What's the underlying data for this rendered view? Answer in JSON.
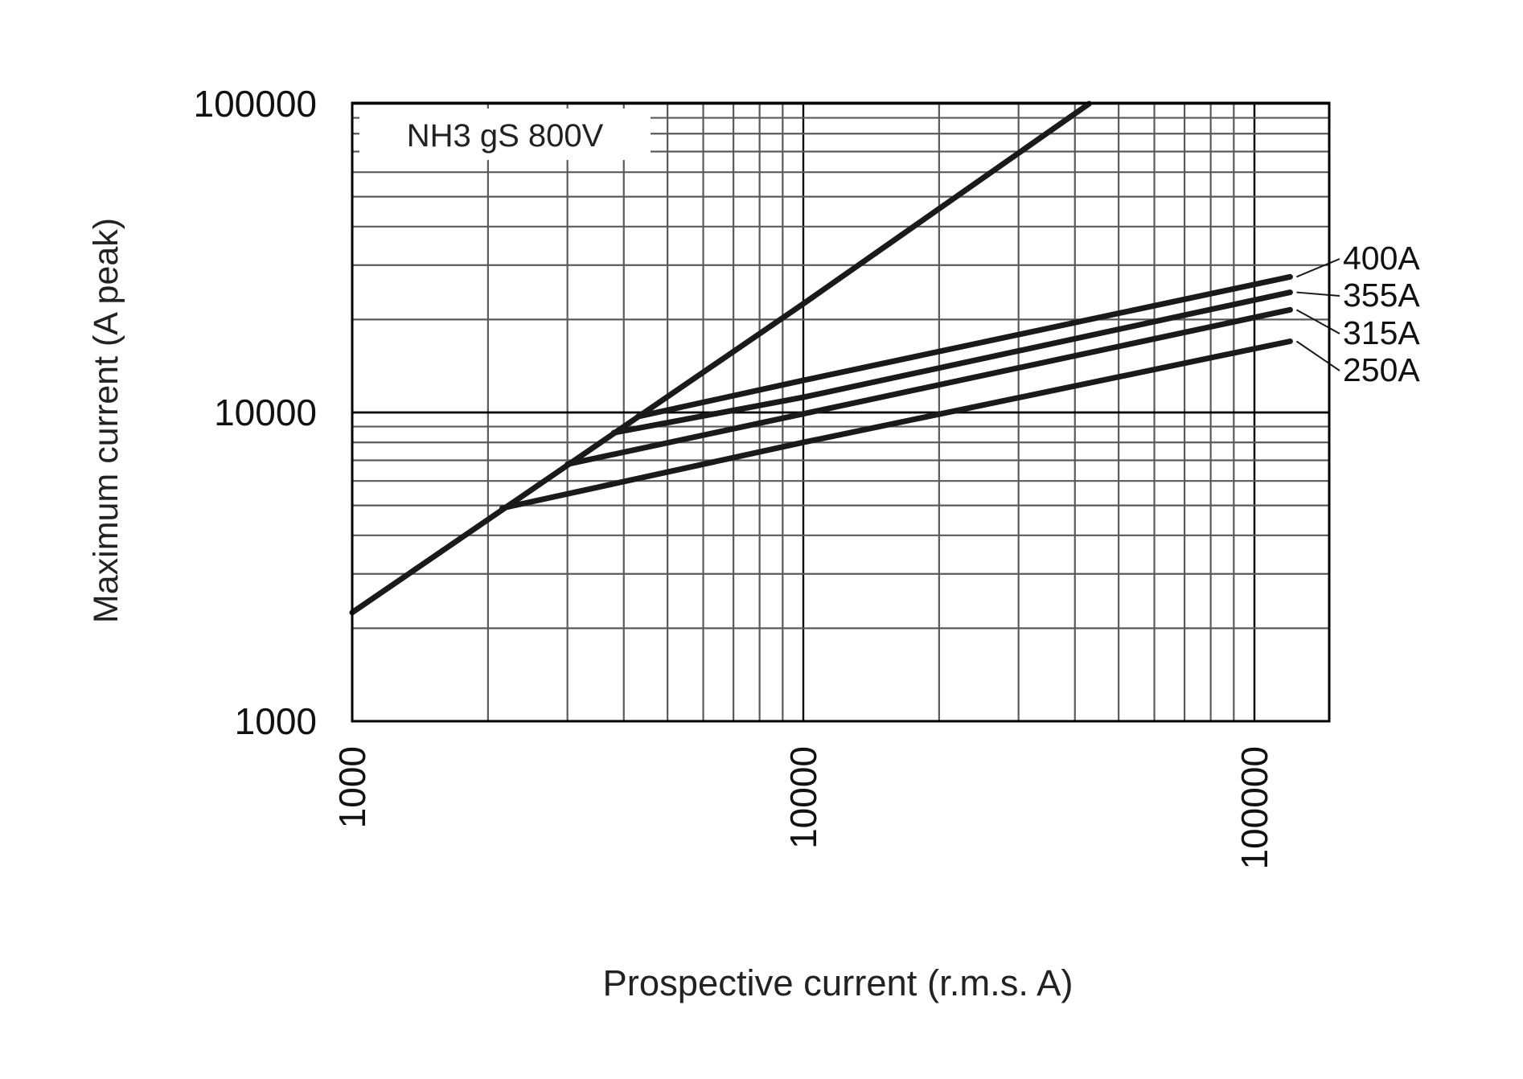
{
  "chart_data": {
    "type": "line",
    "title": "",
    "box_label": "NH3 gS 800V",
    "xlabel": "Prospective current (r.m.s. A)",
    "ylabel": "Maximum current (A peak)",
    "x_scale": "log",
    "y_scale": "log",
    "xlim": [
      1000,
      150000
    ],
    "ylim": [
      1000,
      100000
    ],
    "x_ticks": [
      "1000",
      "10000",
      "100000"
    ],
    "y_ticks": [
      "1000",
      "10000",
      "100000"
    ],
    "grid": true,
    "label_position": "right",
    "limit_line": {
      "name": "",
      "points": [
        [
          1000,
          2250
        ],
        [
          10000,
          22500
        ],
        [
          43000,
          100000
        ]
      ]
    },
    "series": [
      {
        "name": "400A",
        "points": [
          [
            4300,
            9700
          ],
          [
            10000,
            12700
          ],
          [
            120000,
            27500
          ]
        ]
      },
      {
        "name": "355A",
        "points": [
          [
            3800,
            8600
          ],
          [
            10000,
            11200
          ],
          [
            120000,
            24500
          ]
        ]
      },
      {
        "name": "315A",
        "points": [
          [
            3000,
            6800
          ],
          [
            10000,
            9900
          ],
          [
            120000,
            21500
          ]
        ]
      },
      {
        "name": "250A",
        "points": [
          [
            2150,
            4900
          ],
          [
            10000,
            8000
          ],
          [
            120000,
            17000
          ]
        ]
      }
    ]
  }
}
